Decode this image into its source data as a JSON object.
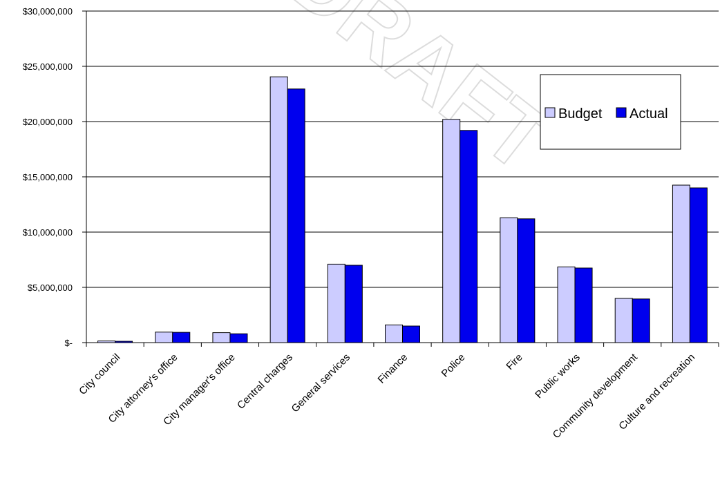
{
  "watermark": "DRAFT",
  "chart_data": {
    "type": "bar",
    "categories": [
      "City council",
      "City attorney's office",
      "City manager's office",
      "Central charges",
      "General services",
      "Finance",
      "Police",
      "Fire",
      "Public works",
      "Community development",
      "Culture and recreation"
    ],
    "series": [
      {
        "name": "Budget",
        "color": "#ccccff",
        "values": [
          150000,
          950000,
          900000,
          24050000,
          7100000,
          1600000,
          20200000,
          11300000,
          6850000,
          4000000,
          14250000
        ]
      },
      {
        "name": "Actual",
        "color": "#0000ee",
        "values": [
          120000,
          930000,
          800000,
          22950000,
          7000000,
          1500000,
          19200000,
          11200000,
          6750000,
          3950000,
          14000000
        ]
      }
    ],
    "ylim": [
      0,
      30000000
    ],
    "yticks": [
      0,
      5000000,
      10000000,
      15000000,
      20000000,
      25000000,
      30000000
    ],
    "ytick_labels": [
      "$-",
      "$5,000,000",
      "$10,000,000",
      "$15,000,000",
      "$20,000,000",
      "$25,000,000",
      "$30,000,000"
    ],
    "grid": true,
    "legend_position": "upper-right"
  }
}
